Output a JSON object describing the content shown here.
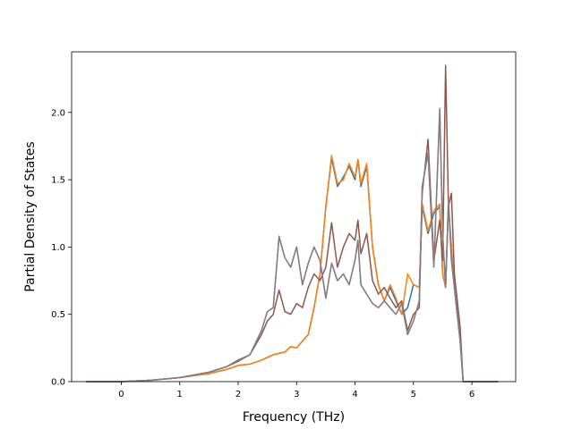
{
  "chart_data": {
    "type": "line",
    "title": "",
    "xlabel": "Frequency (THz)",
    "ylabel": "Partial Density of States",
    "xlim": [
      -0.85,
      6.75
    ],
    "ylim": [
      0,
      2.45
    ],
    "xticks": [
      0,
      1,
      2,
      3,
      4,
      5,
      6
    ],
    "yticks": [
      0.0,
      0.5,
      1.0,
      1.5,
      2.0
    ],
    "xtick_labels": [
      "0",
      "1",
      "2",
      "3",
      "4",
      "5",
      "6"
    ],
    "ytick_labels": [
      "0.0",
      "0.5",
      "1.0",
      "1.5",
      "2.0"
    ],
    "grid": false,
    "legend": "none",
    "series": [
      {
        "color": "#1f77b4",
        "points": [
          [
            -0.6,
            0
          ],
          [
            0,
            0
          ],
          [
            0.5,
            0.01
          ],
          [
            1,
            0.03
          ],
          [
            1.5,
            0.06
          ],
          [
            1.8,
            0.09
          ],
          [
            2,
            0.12
          ],
          [
            2.2,
            0.13
          ],
          [
            2.4,
            0.16
          ],
          [
            2.6,
            0.2
          ],
          [
            2.8,
            0.22
          ],
          [
            2.9,
            0.26
          ],
          [
            3.0,
            0.25
          ],
          [
            3.1,
            0.3
          ],
          [
            3.2,
            0.35
          ],
          [
            3.3,
            0.55
          ],
          [
            3.4,
            0.8
          ],
          [
            3.5,
            1.3
          ],
          [
            3.6,
            1.66
          ],
          [
            3.7,
            1.45
          ],
          [
            3.8,
            1.52
          ],
          [
            3.9,
            1.6
          ],
          [
            4.0,
            1.5
          ],
          [
            4.05,
            1.65
          ],
          [
            4.1,
            1.45
          ],
          [
            4.2,
            1.6
          ],
          [
            4.3,
            1.0
          ],
          [
            4.4,
            0.72
          ],
          [
            4.5,
            0.6
          ],
          [
            4.6,
            0.7
          ],
          [
            4.7,
            0.6
          ],
          [
            4.8,
            0.5
          ],
          [
            4.9,
            0.55
          ],
          [
            5.0,
            0.72
          ],
          [
            5.1,
            0.7
          ],
          [
            5.15,
            1.3
          ],
          [
            5.25,
            1.1
          ],
          [
            5.35,
            1.25
          ],
          [
            5.45,
            1.3
          ],
          [
            5.5,
            0.8
          ],
          [
            5.55,
            0.7
          ],
          [
            5.6,
            1.3
          ],
          [
            5.65,
            1.0
          ],
          [
            5.7,
            0.7
          ],
          [
            5.8,
            0.3
          ],
          [
            5.85,
            0
          ],
          [
            6.45,
            0
          ]
        ]
      },
      {
        "color": "#ff7f0e",
        "points": [
          [
            -0.6,
            0
          ],
          [
            0,
            0
          ],
          [
            0.5,
            0.01
          ],
          [
            1,
            0.03
          ],
          [
            1.5,
            0.06
          ],
          [
            1.8,
            0.09
          ],
          [
            2,
            0.12
          ],
          [
            2.2,
            0.13
          ],
          [
            2.4,
            0.16
          ],
          [
            2.6,
            0.2
          ],
          [
            2.8,
            0.22
          ],
          [
            2.9,
            0.26
          ],
          [
            3.0,
            0.25
          ],
          [
            3.1,
            0.3
          ],
          [
            3.2,
            0.35
          ],
          [
            3.3,
            0.55
          ],
          [
            3.4,
            0.8
          ],
          [
            3.5,
            1.3
          ],
          [
            3.6,
            1.68
          ],
          [
            3.7,
            1.47
          ],
          [
            3.8,
            1.5
          ],
          [
            3.9,
            1.62
          ],
          [
            4.0,
            1.52
          ],
          [
            4.05,
            1.65
          ],
          [
            4.1,
            1.47
          ],
          [
            4.2,
            1.62
          ],
          [
            4.3,
            1.0
          ],
          [
            4.4,
            0.72
          ],
          [
            4.5,
            0.6
          ],
          [
            4.6,
            0.72
          ],
          [
            4.7,
            0.62
          ],
          [
            4.8,
            0.5
          ],
          [
            4.9,
            0.8
          ],
          [
            5.0,
            0.72
          ],
          [
            5.1,
            0.7
          ],
          [
            5.15,
            1.32
          ],
          [
            5.25,
            1.12
          ],
          [
            5.35,
            1.27
          ],
          [
            5.45,
            1.32
          ],
          [
            5.5,
            0.8
          ],
          [
            5.55,
            0.7
          ],
          [
            5.6,
            1.32
          ],
          [
            5.65,
            1.0
          ],
          [
            5.7,
            0.7
          ],
          [
            5.8,
            0.3
          ],
          [
            5.85,
            0
          ],
          [
            6.45,
            0
          ]
        ]
      },
      {
        "color": "#8c564b",
        "points": [
          [
            -0.6,
            0
          ],
          [
            0,
            0
          ],
          [
            0.5,
            0.01
          ],
          [
            1,
            0.03
          ],
          [
            1.5,
            0.07
          ],
          [
            1.8,
            0.11
          ],
          [
            2,
            0.16
          ],
          [
            2.2,
            0.2
          ],
          [
            2.4,
            0.35
          ],
          [
            2.5,
            0.45
          ],
          [
            2.6,
            0.5
          ],
          [
            2.7,
            0.68
          ],
          [
            2.8,
            0.52
          ],
          [
            2.9,
            0.5
          ],
          [
            3.0,
            0.58
          ],
          [
            3.1,
            0.55
          ],
          [
            3.2,
            0.7
          ],
          [
            3.3,
            0.8
          ],
          [
            3.4,
            0.75
          ],
          [
            3.5,
            0.85
          ],
          [
            3.6,
            1.18
          ],
          [
            3.7,
            0.85
          ],
          [
            3.8,
            1.0
          ],
          [
            3.9,
            1.1
          ],
          [
            4.0,
            1.05
          ],
          [
            4.05,
            1.2
          ],
          [
            4.1,
            0.95
          ],
          [
            4.2,
            1.1
          ],
          [
            4.3,
            0.75
          ],
          [
            4.4,
            0.65
          ],
          [
            4.5,
            0.7
          ],
          [
            4.6,
            0.62
          ],
          [
            4.7,
            0.55
          ],
          [
            4.8,
            0.6
          ],
          [
            4.9,
            0.38
          ],
          [
            5.0,
            0.5
          ],
          [
            5.1,
            0.55
          ],
          [
            5.15,
            1.4
          ],
          [
            5.25,
            1.8
          ],
          [
            5.35,
            0.9
          ],
          [
            5.45,
            1.2
          ],
          [
            5.5,
            0.9
          ],
          [
            5.55,
            2.35
          ],
          [
            5.6,
            1.3
          ],
          [
            5.65,
            1.4
          ],
          [
            5.7,
            0.8
          ],
          [
            5.8,
            0.4
          ],
          [
            5.85,
            0
          ],
          [
            6.45,
            0
          ]
        ]
      },
      {
        "color": "#e377c2",
        "points": [
          [
            -0.6,
            0
          ],
          [
            0,
            0
          ],
          [
            0.5,
            0.01
          ],
          [
            1,
            0.03
          ],
          [
            1.5,
            0.07
          ],
          [
            1.8,
            0.11
          ],
          [
            2,
            0.15
          ],
          [
            2.2,
            0.2
          ],
          [
            2.4,
            0.38
          ],
          [
            2.5,
            0.52
          ],
          [
            2.6,
            0.55
          ],
          [
            2.7,
            1.07
          ],
          [
            2.8,
            0.92
          ],
          [
            2.9,
            0.85
          ],
          [
            3.0,
            1.0
          ],
          [
            3.1,
            0.72
          ],
          [
            3.2,
            0.88
          ],
          [
            3.3,
            1.0
          ],
          [
            3.4,
            0.9
          ],
          [
            3.5,
            0.62
          ],
          [
            3.6,
            0.88
          ],
          [
            3.7,
            0.75
          ],
          [
            3.8,
            0.8
          ],
          [
            3.9,
            0.72
          ],
          [
            4.0,
            0.9
          ],
          [
            4.05,
            1.05
          ],
          [
            4.1,
            0.72
          ],
          [
            4.2,
            0.65
          ],
          [
            4.3,
            0.58
          ],
          [
            4.4,
            0.55
          ],
          [
            4.5,
            0.6
          ],
          [
            4.6,
            0.55
          ],
          [
            4.7,
            0.5
          ],
          [
            4.8,
            0.58
          ],
          [
            4.9,
            0.35
          ],
          [
            5.0,
            0.45
          ],
          [
            5.1,
            0.6
          ],
          [
            5.15,
            1.45
          ],
          [
            5.25,
            1.7
          ],
          [
            5.35,
            0.85
          ],
          [
            5.45,
            2.02
          ],
          [
            5.5,
            1.1
          ],
          [
            5.55,
            0.7
          ],
          [
            5.6,
            1.35
          ],
          [
            5.65,
            0.9
          ],
          [
            5.7,
            0.7
          ],
          [
            5.8,
            0.3
          ],
          [
            5.85,
            0
          ],
          [
            6.45,
            0
          ]
        ]
      },
      {
        "color": "#7f7f7f",
        "points": [
          [
            -0.6,
            0
          ],
          [
            0,
            0
          ],
          [
            0.5,
            0.01
          ],
          [
            1,
            0.03
          ],
          [
            1.5,
            0.07
          ],
          [
            1.8,
            0.11
          ],
          [
            2,
            0.15
          ],
          [
            2.2,
            0.2
          ],
          [
            2.4,
            0.38
          ],
          [
            2.5,
            0.52
          ],
          [
            2.6,
            0.55
          ],
          [
            2.7,
            1.08
          ],
          [
            2.8,
            0.92
          ],
          [
            2.9,
            0.85
          ],
          [
            3.0,
            1.0
          ],
          [
            3.1,
            0.72
          ],
          [
            3.2,
            0.88
          ],
          [
            3.3,
            1.0
          ],
          [
            3.4,
            0.9
          ],
          [
            3.5,
            0.62
          ],
          [
            3.6,
            0.88
          ],
          [
            3.7,
            0.75
          ],
          [
            3.8,
            0.8
          ],
          [
            3.9,
            0.72
          ],
          [
            4.0,
            0.9
          ],
          [
            4.05,
            1.05
          ],
          [
            4.1,
            0.72
          ],
          [
            4.2,
            0.65
          ],
          [
            4.3,
            0.58
          ],
          [
            4.4,
            0.55
          ],
          [
            4.5,
            0.6
          ],
          [
            4.6,
            0.55
          ],
          [
            4.7,
            0.5
          ],
          [
            4.8,
            0.58
          ],
          [
            4.9,
            0.35
          ],
          [
            5.0,
            0.45
          ],
          [
            5.1,
            0.6
          ],
          [
            5.15,
            1.45
          ],
          [
            5.25,
            1.7
          ],
          [
            5.35,
            0.85
          ],
          [
            5.45,
            2.03
          ],
          [
            5.5,
            1.1
          ],
          [
            5.55,
            0.7
          ],
          [
            5.6,
            1.35
          ],
          [
            5.65,
            0.9
          ],
          [
            5.7,
            0.7
          ],
          [
            5.8,
            0.3
          ],
          [
            5.85,
            0
          ],
          [
            6.45,
            0
          ]
        ]
      }
    ]
  }
}
